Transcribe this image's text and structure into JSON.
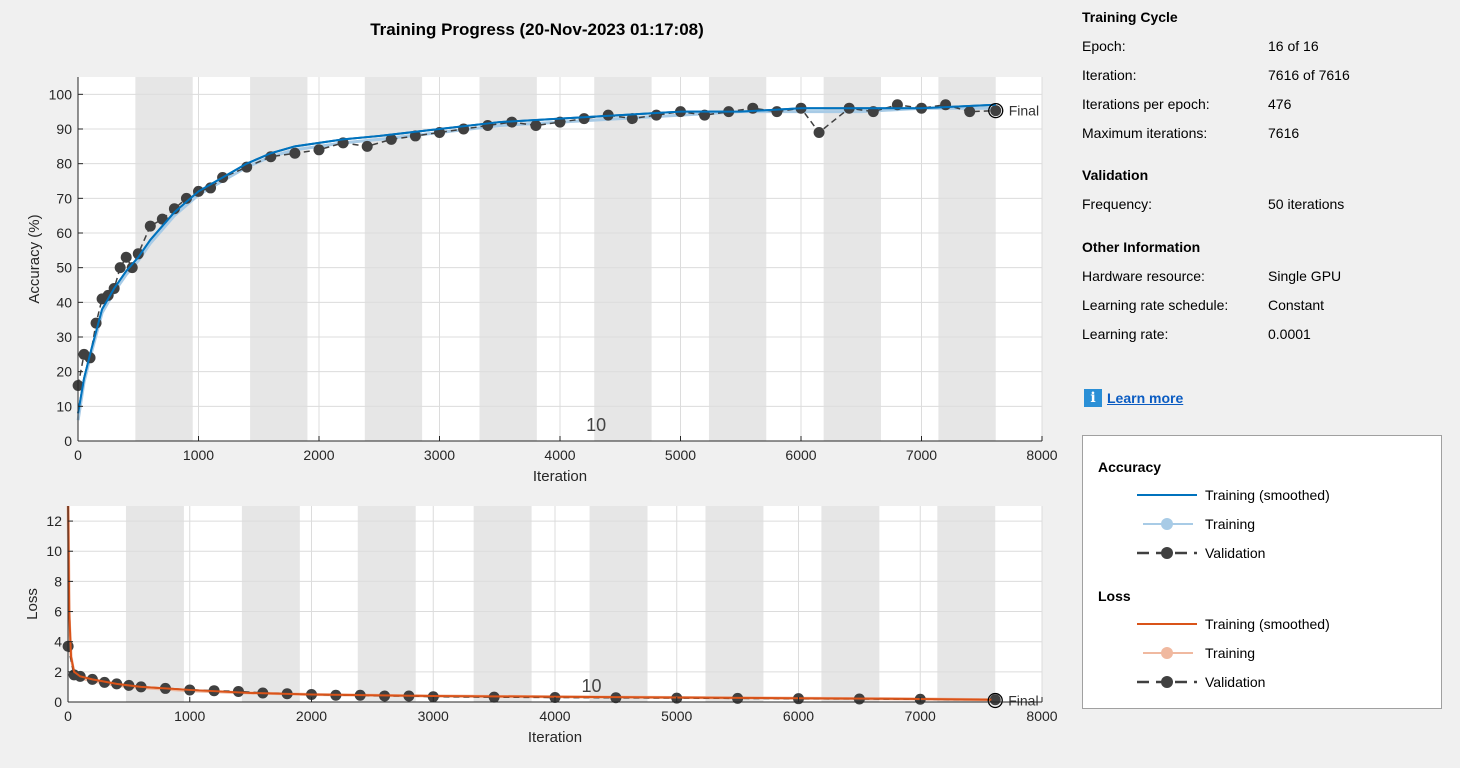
{
  "chart_data": [
    {
      "type": "line",
      "title": "Training Progress (20-Nov-2023 01:17:08)",
      "xlabel": "Iteration",
      "ylabel": "Accuracy (%)",
      "xlim": [
        0,
        8000
      ],
      "ylim": [
        0,
        105
      ],
      "xticks": [
        0,
        1000,
        2000,
        3000,
        4000,
        5000,
        6000,
        7000,
        8000
      ],
      "yticks": [
        0,
        10,
        20,
        30,
        40,
        50,
        60,
        70,
        80,
        90,
        100
      ],
      "grid": true,
      "epoch_annotation": {
        "label": "10",
        "x": 4300
      },
      "final_marker": {
        "label": "Final",
        "x": 7616,
        "y": 95.3
      },
      "epoch_shading": [
        [
          476,
          952
        ],
        [
          1428,
          1904
        ],
        [
          2380,
          2856
        ],
        [
          3332,
          3808
        ],
        [
          4284,
          4760
        ],
        [
          5236,
          5712
        ],
        [
          6188,
          6664
        ],
        [
          7140,
          7616
        ]
      ],
      "series": [
        {
          "name": "Training (smoothed)",
          "color": "#0072bd",
          "x": [
            1,
            50,
            100,
            200,
            300,
            400,
            500,
            600,
            700,
            800,
            900,
            1000,
            1200,
            1400,
            1600,
            1800,
            2000,
            2200,
            2500,
            3000,
            3500,
            4000,
            4500,
            5000,
            5500,
            6000,
            6500,
            7000,
            7616
          ],
          "y": [
            8,
            18,
            25,
            38,
            44,
            49,
            53,
            58,
            62,
            66,
            69,
            72,
            76,
            80,
            83,
            85,
            86,
            87,
            88,
            90,
            92,
            93,
            94,
            95,
            95,
            96,
            96,
            96,
            97
          ]
        },
        {
          "name": "Training",
          "color": "#a8cbe6",
          "x": [
            1,
            50,
            100,
            200,
            300,
            400,
            500,
            600,
            700,
            800,
            900,
            1000,
            1200,
            1400,
            1600,
            1800,
            2000,
            2200,
            2500,
            3000,
            3500,
            4000,
            4500,
            5000,
            5500,
            6000,
            6500,
            7000,
            7616
          ],
          "y": [
            6,
            17,
            24,
            37,
            43,
            48,
            52,
            57,
            61,
            65,
            68,
            71,
            75,
            79,
            82,
            84,
            85,
            86,
            87,
            89,
            91,
            92,
            93,
            94,
            95,
            95,
            95,
            96,
            96
          ]
        },
        {
          "name": "Validation",
          "color": "#404040",
          "x": [
            1,
            50,
            100,
            150,
            200,
            250,
            300,
            350,
            400,
            450,
            500,
            600,
            700,
            800,
            900,
            1000,
            1100,
            1200,
            1400,
            1600,
            1800,
            2000,
            2200,
            2400,
            2600,
            2800,
            3000,
            3200,
            3400,
            3600,
            3800,
            4000,
            4200,
            4400,
            4600,
            4800,
            5000,
            5200,
            5400,
            5600,
            5800,
            6000,
            6150,
            6400,
            6600,
            6800,
            7000,
            7200,
            7400,
            7616
          ],
          "y": [
            16,
            25,
            24,
            34,
            41,
            42,
            44,
            50,
            53,
            50,
            54,
            62,
            64,
            67,
            70,
            72,
            73,
            76,
            79,
            82,
            83,
            84,
            86,
            85,
            87,
            88,
            89,
            90,
            91,
            92,
            91,
            92,
            93,
            94,
            93,
            94,
            95,
            94,
            95,
            96,
            95,
            96,
            89,
            96,
            95,
            97,
            96,
            97,
            95,
            95.3
          ]
        }
      ]
    },
    {
      "type": "line",
      "xlabel": "Iteration",
      "ylabel": "Loss",
      "xlim": [
        0,
        8000
      ],
      "ylim": [
        0,
        13
      ],
      "xticks": [
        0,
        1000,
        2000,
        3000,
        4000,
        5000,
        6000,
        7000,
        8000
      ],
      "yticks": [
        0,
        2,
        4,
        6,
        8,
        10,
        12
      ],
      "grid": true,
      "epoch_annotation": {
        "label": "10",
        "x": 4300
      },
      "final_marker": {
        "label": "Final",
        "x": 7616,
        "y": 0.1
      },
      "epoch_shading": [
        [
          476,
          952
        ],
        [
          1428,
          1904
        ],
        [
          2380,
          2856
        ],
        [
          3332,
          3808
        ],
        [
          4284,
          4760
        ],
        [
          5236,
          5712
        ],
        [
          6188,
          6664
        ],
        [
          7140,
          7616
        ]
      ],
      "series": [
        {
          "name": "Training (smoothed)",
          "color": "#d95319",
          "x": [
            1,
            10,
            25,
            50,
            100,
            200,
            400,
            600,
            800,
            1000,
            1500,
            2000,
            2500,
            3000,
            4000,
            5000,
            6000,
            7000,
            7616
          ],
          "y": [
            13,
            6,
            3,
            2,
            1.7,
            1.5,
            1.2,
            1.0,
            0.9,
            0.8,
            0.6,
            0.5,
            0.45,
            0.4,
            0.35,
            0.3,
            0.25,
            0.2,
            0.15
          ]
        },
        {
          "name": "Training",
          "color": "#f0b9a0",
          "x": [
            1,
            10,
            25,
            50,
            100,
            200,
            400,
            600,
            800,
            1000,
            1500,
            2000,
            2500,
            3000,
            4000,
            5000,
            6000,
            7000,
            7616
          ],
          "y": [
            13,
            5.5,
            3,
            1.9,
            1.6,
            1.4,
            1.1,
            0.95,
            0.85,
            0.75,
            0.6,
            0.5,
            0.45,
            0.4,
            0.35,
            0.3,
            0.25,
            0.2,
            0.15
          ]
        },
        {
          "name": "Validation",
          "color": "#404040",
          "x": [
            1,
            50,
            100,
            200,
            300,
            400,
            500,
            600,
            800,
            1000,
            1200,
            1400,
            1600,
            1800,
            2000,
            2200,
            2400,
            2600,
            2800,
            3000,
            3500,
            4000,
            4500,
            5000,
            5500,
            6000,
            6500,
            7000,
            7616
          ],
          "y": [
            3.7,
            1.8,
            1.7,
            1.5,
            1.3,
            1.2,
            1.1,
            1.0,
            0.9,
            0.8,
            0.75,
            0.7,
            0.6,
            0.55,
            0.5,
            0.45,
            0.45,
            0.4,
            0.4,
            0.35,
            0.32,
            0.3,
            0.28,
            0.26,
            0.24,
            0.22,
            0.2,
            0.18,
            0.15
          ]
        }
      ]
    }
  ],
  "info": {
    "training_cycle": {
      "title": "Training Cycle",
      "rows": [
        {
          "label": "Epoch:",
          "value": "16 of 16"
        },
        {
          "label": "Iteration:",
          "value": "7616 of 7616"
        },
        {
          "label": "Iterations per epoch:",
          "value": "476"
        },
        {
          "label": "Maximum iterations:",
          "value": "7616"
        }
      ]
    },
    "validation": {
      "title": "Validation",
      "rows": [
        {
          "label": "Frequency:",
          "value": "50 iterations"
        }
      ]
    },
    "other": {
      "title": "Other Information",
      "rows": [
        {
          "label": "Hardware resource:",
          "value": "Single GPU"
        },
        {
          "label": "Learning rate schedule:",
          "value": "Constant"
        },
        {
          "label": "Learning rate:",
          "value": "0.0001"
        }
      ]
    },
    "learn_more": "Learn more",
    "info_icon": "info-icon"
  },
  "legend": {
    "accuracy_title": "Accuracy",
    "loss_title": "Loss",
    "accuracy_items": [
      {
        "label": "Training (smoothed)",
        "color": "#0072bd",
        "style": "line"
      },
      {
        "label": "Training",
        "color": "#a8cbe6",
        "style": "line-marker"
      },
      {
        "label": "Validation",
        "color": "#404040",
        "style": "dashed-marker"
      }
    ],
    "loss_items": [
      {
        "label": "Training (smoothed)",
        "color": "#d95319",
        "style": "line"
      },
      {
        "label": "Training",
        "color": "#f0b9a0",
        "style": "line-marker"
      },
      {
        "label": "Validation",
        "color": "#404040",
        "style": "dashed-marker"
      }
    ]
  }
}
